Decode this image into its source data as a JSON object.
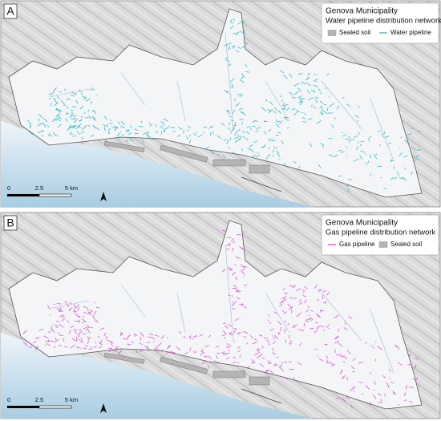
{
  "panels": [
    {
      "letter": "A",
      "title": "Genova Municipality",
      "subtitle": "Water pipeline distribution network",
      "legend": [
        {
          "label": "Sealed soil",
          "symbol": "fill",
          "color": "#b4b4b4"
        },
        {
          "label": "Water pipeline",
          "symbol": "line",
          "color": "#1fb5c2"
        }
      ],
      "scale": [
        "0",
        "2.5",
        "5 km"
      ]
    },
    {
      "letter": "B",
      "title": "Genova Municipality",
      "subtitle": "Gas pipeline distribution network",
      "legend": [
        {
          "label": "Gas pipeline",
          "symbol": "line",
          "color": "#e040d8"
        },
        {
          "label": "Sealed soil",
          "symbol": "fill",
          "color": "#b4b4b4"
        }
      ],
      "scale": [
        "0",
        "2.5",
        "5 km"
      ]
    }
  ]
}
